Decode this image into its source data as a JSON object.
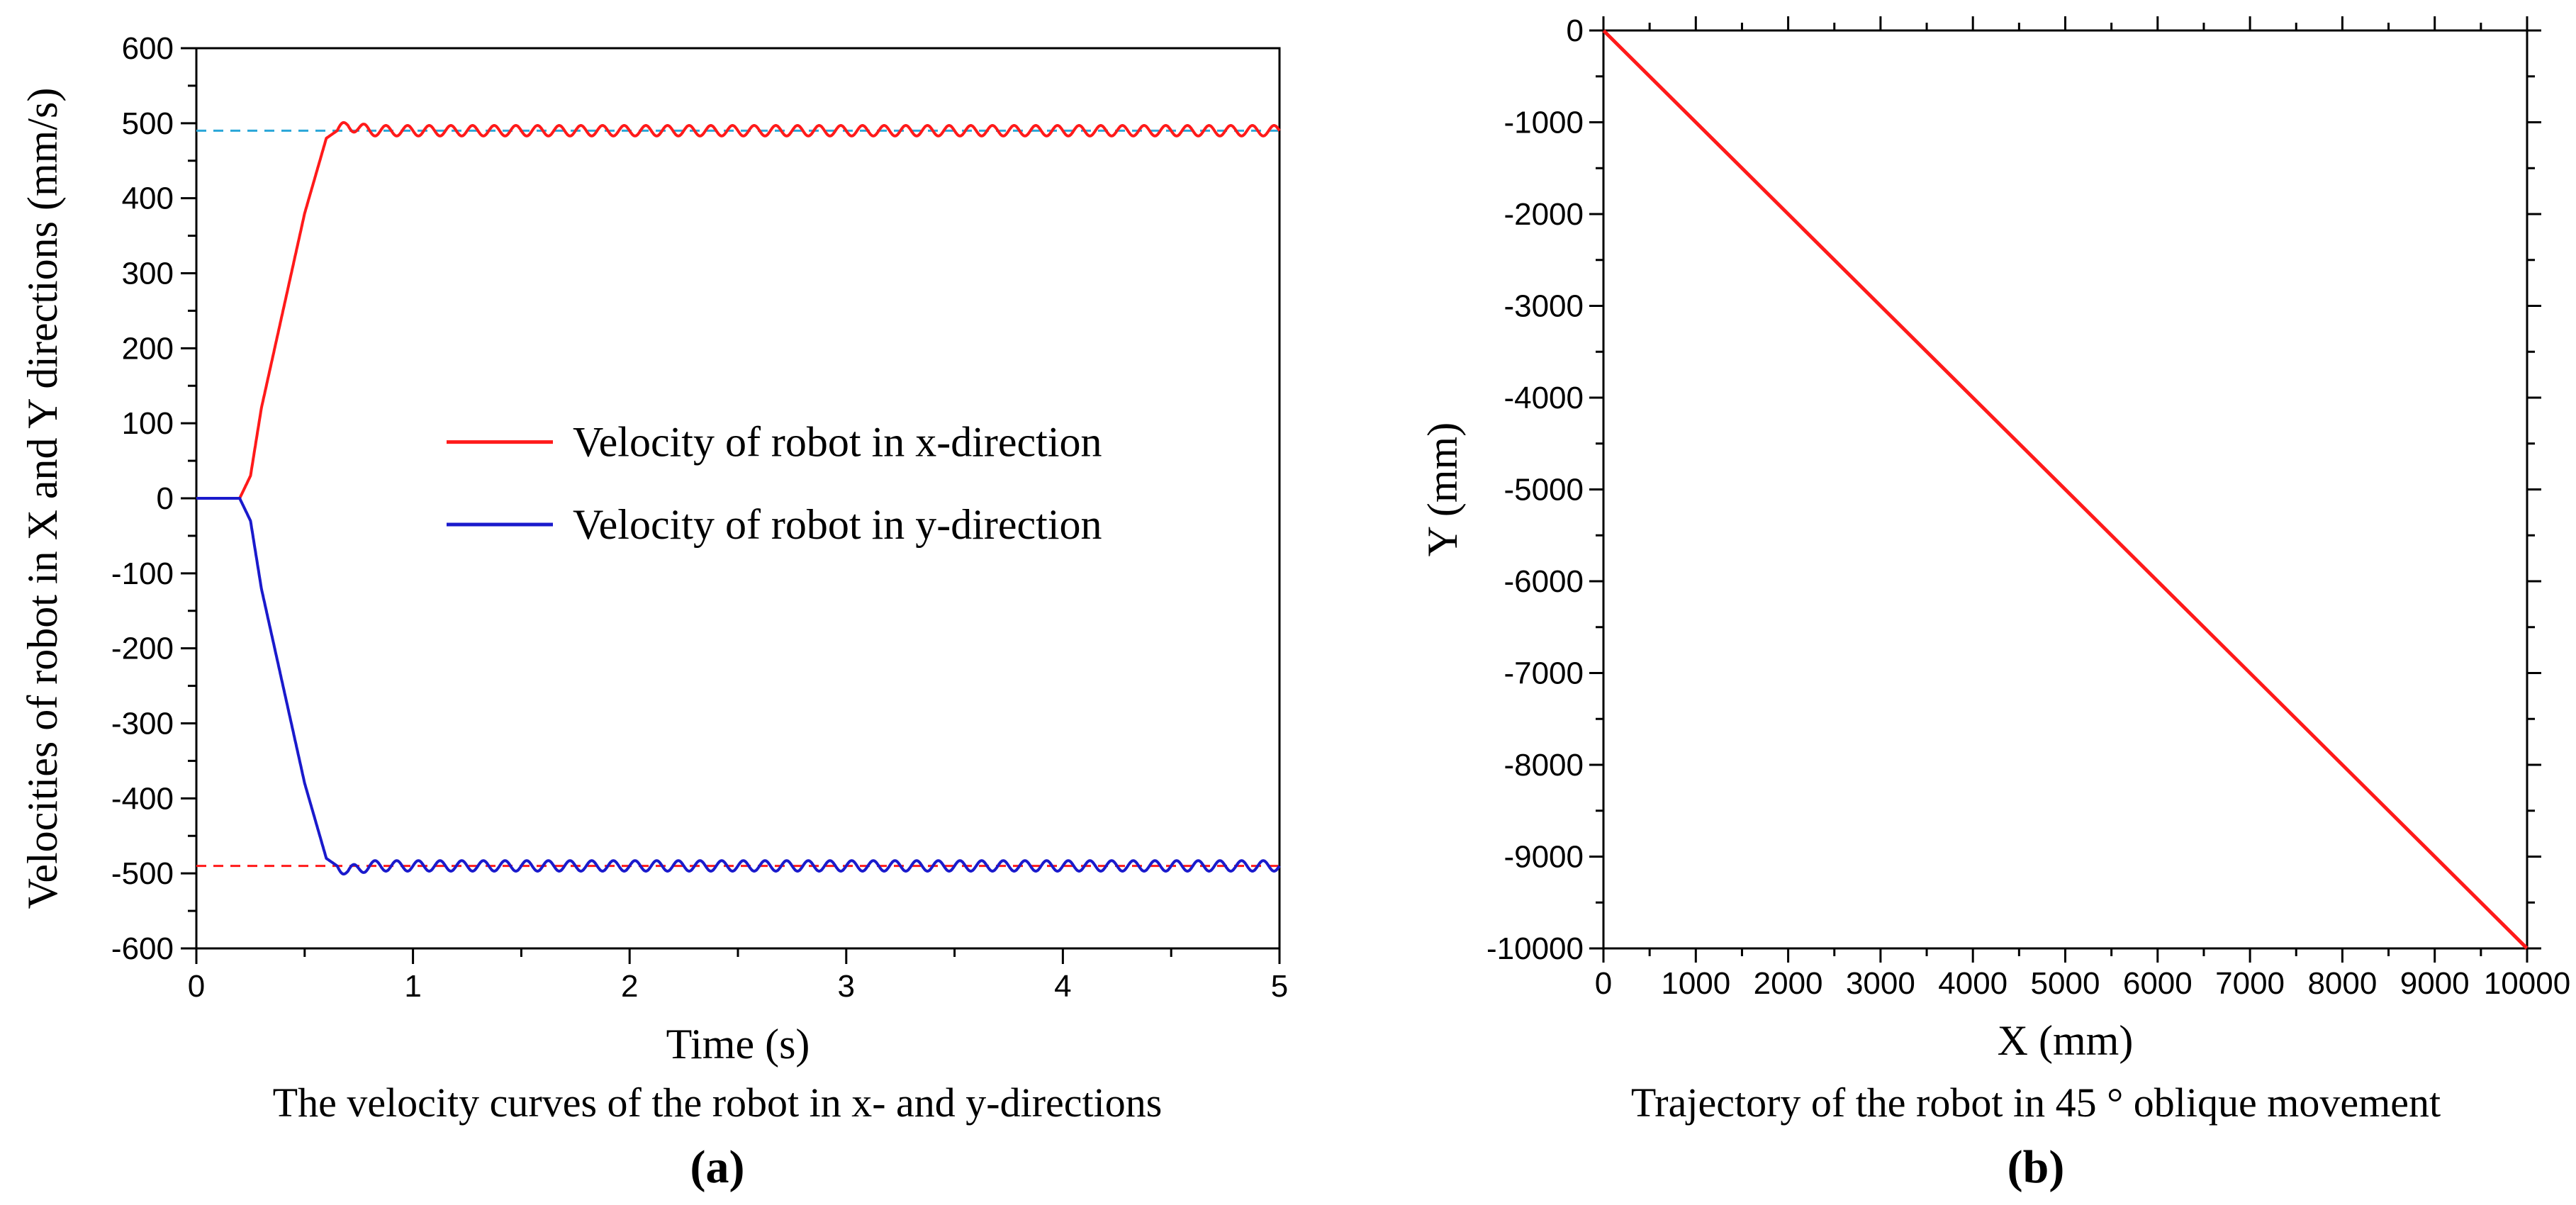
{
  "chart_data": [
    {
      "panel": "(a)",
      "type": "line",
      "caption": "The velocity curves of the robot in x- and y-directions",
      "xlabel": "Time (s)",
      "ylabel": "Velocities of robot in X and Y directions (mm/s)",
      "xlim": [
        0,
        5
      ],
      "ylim": [
        -600,
        600
      ],
      "xticks": [
        0,
        1,
        2,
        3,
        4,
        5
      ],
      "yticks": [
        600,
        500,
        400,
        300,
        200,
        100,
        0,
        -100,
        -200,
        -300,
        -400,
        -500,
        -600
      ],
      "grid": false,
      "legend_position": "center-right",
      "series": [
        {
          "name": "Velocity of robot in x-direction",
          "color": "#ff1a1a",
          "x": [
            0,
            0.2,
            0.25,
            0.3,
            0.4,
            0.5,
            0.6,
            0.65,
            0.7,
            0.8,
            1.0,
            1.5,
            2.0,
            2.5,
            3.0,
            3.5,
            4.0,
            4.5,
            5.0
          ],
          "y": [
            0,
            0,
            30,
            120,
            250,
            380,
            480,
            490,
            497,
            490,
            490,
            490,
            490,
            490,
            490,
            490,
            490,
            490,
            490
          ],
          "oscillation": {
            "start": 0.65,
            "end": 5.0,
            "amplitude": 7,
            "period": 0.1
          }
        },
        {
          "name": "Velocity of robot in y-direction",
          "color": "#1a1acc",
          "x": [
            0,
            0.2,
            0.25,
            0.3,
            0.4,
            0.5,
            0.6,
            0.65,
            0.7,
            0.8,
            1.0,
            1.5,
            2.0,
            2.5,
            3.0,
            3.5,
            4.0,
            4.5,
            5.0
          ],
          "y": [
            0,
            0,
            -30,
            -120,
            -250,
            -380,
            -480,
            -490,
            -497,
            -490,
            -490,
            -490,
            -490,
            -490,
            -490,
            -490,
            -490,
            -490,
            -490
          ],
          "oscillation": {
            "start": 0.65,
            "end": 5.0,
            "amplitude": 7,
            "period": 0.1
          }
        }
      ],
      "reference_lines": [
        {
          "y": 490,
          "color": "#2aa6d8",
          "style": "dashed"
        },
        {
          "y": -490,
          "color": "#ff1a1a",
          "style": "dashed"
        }
      ]
    },
    {
      "panel": "(b)",
      "type": "line",
      "caption": "Trajectory of the robot in 45 ° oblique movement",
      "xlabel": "X (mm)",
      "ylabel": "Y (mm)",
      "xlim": [
        0,
        10000
      ],
      "ylim": [
        -10000,
        0
      ],
      "xticks": [
        0,
        1000,
        2000,
        3000,
        4000,
        5000,
        6000,
        7000,
        8000,
        9000,
        10000
      ],
      "yticks": [
        0,
        -1000,
        -2000,
        -3000,
        -4000,
        -5000,
        -6000,
        -7000,
        -8000,
        -9000,
        -10000
      ],
      "grid": false,
      "series": [
        {
          "color": "#ff1a1a",
          "x": [
            0,
            10000
          ],
          "y": [
            0,
            -10000
          ]
        }
      ]
    }
  ]
}
